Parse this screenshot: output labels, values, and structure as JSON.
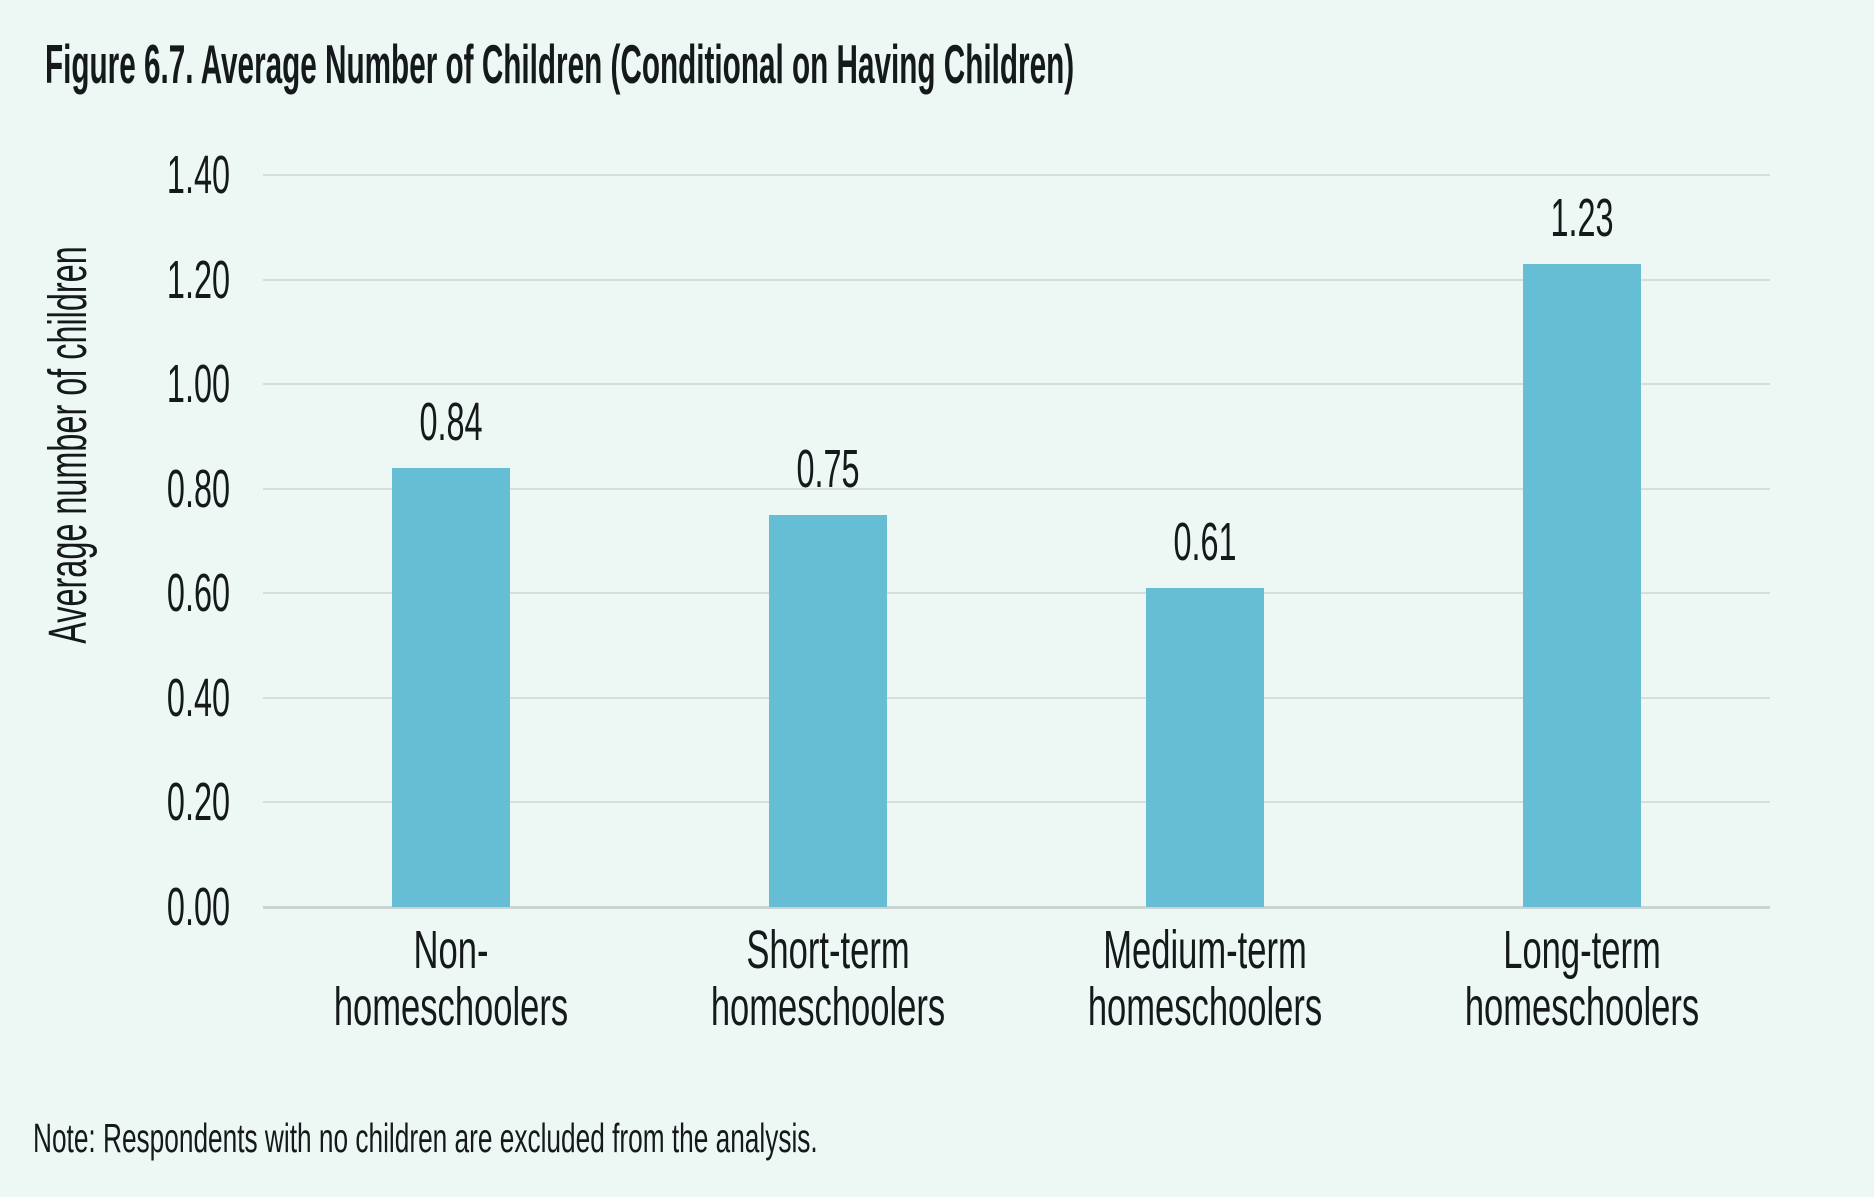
{
  "figure": {
    "label": "Figure 6.7",
    "title": "Figure 6.7. Average Number of Children (Conditional on Having Children)",
    "note": "Note: Respondents with no children are excluded from the analysis."
  },
  "chart_data": {
    "type": "bar",
    "title": "Figure 6.7. Average Number of Children (Conditional on Having Children)",
    "xlabel": "",
    "ylabel": "Average number of children",
    "categories": [
      "Non-homeschoolers",
      "Short-term homeschoolers",
      "Medium-term homeschoolers",
      "Long-term homeschoolers"
    ],
    "category_label_lines": [
      [
        "Non-homeschoolers"
      ],
      [
        "Short-term",
        "homeschoolers"
      ],
      [
        "Medium-term",
        "homeschoolers"
      ],
      [
        "Long-term",
        "homeschoolers"
      ]
    ],
    "values": [
      0.84,
      0.75,
      0.61,
      1.23
    ],
    "value_labels": [
      "0.84",
      "0.75",
      "0.61",
      "1.23"
    ],
    "ylim": [
      0,
      1.4
    ],
    "yticks": [
      0.0,
      0.2,
      0.4,
      0.6,
      0.8,
      1.0,
      1.2,
      1.4
    ],
    "ytick_labels": [
      "0.00",
      "0.20",
      "0.40",
      "0.60",
      "0.80",
      "1.00",
      "1.20",
      "1.40"
    ],
    "grid": "horizontal gridlines on",
    "legend": "none",
    "note": "Note: Respondents with no children are excluded from the analysis.",
    "colors": {
      "bar": "#66bed5",
      "background": "#edf7f4",
      "gridline": "#d8dddb",
      "axis_baseline": "#cdd3d1",
      "text": "#15191c"
    }
  }
}
